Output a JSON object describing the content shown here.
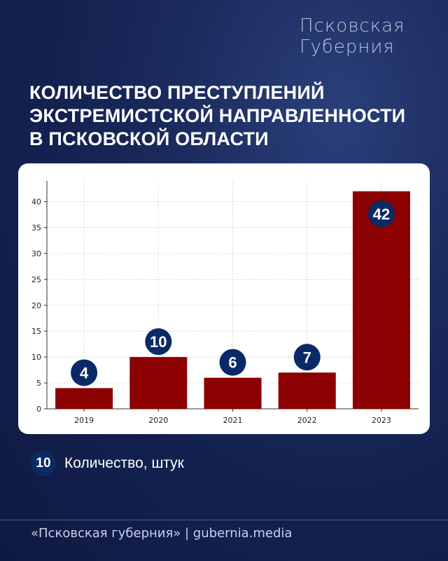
{
  "brand": {
    "line1": "Псковская",
    "line2": "Губерния"
  },
  "title": {
    "line1": "КОЛИЧЕСТВО ПРЕСТУПЛЕНИЙ",
    "line2": "ЭКСТРЕМИСТСКОЙ НАПРАВЛЕННОСТИ",
    "line3": "В ПСКОВСКОЙ ОБЛАСТИ"
  },
  "legend": {
    "badge": "10",
    "label": "Количество, штук"
  },
  "footer": {
    "text": "«Псковская губерния» | gubernia.media"
  },
  "colors": {
    "bar": "#8b0000",
    "badge": "#0a2a66",
    "background": "#142150"
  },
  "chart_data": {
    "type": "bar",
    "categories": [
      "2019",
      "2020",
      "2021",
      "2022",
      "2023"
    ],
    "values": [
      4,
      10,
      6,
      7,
      42
    ],
    "ylim": [
      0,
      44
    ],
    "yticks": [
      0,
      5,
      10,
      15,
      20,
      25,
      30,
      35,
      40
    ],
    "grid": true,
    "data_labels": [
      "4",
      "10",
      "6",
      "7",
      "42"
    ]
  }
}
